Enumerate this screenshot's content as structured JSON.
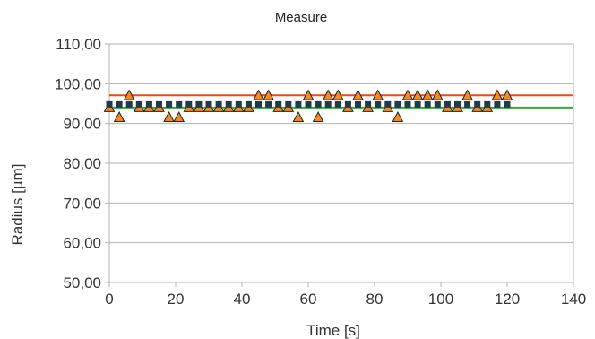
{
  "chart_data": {
    "type": "line",
    "title": "Measure",
    "xlabel": "Time [s]",
    "ylabel": "Radius [µm]",
    "xlim": [
      0,
      140
    ],
    "ylim": [
      50,
      110
    ],
    "xticks": [
      0,
      20,
      40,
      60,
      80,
      100,
      120,
      140
    ],
    "yticks": [
      50,
      60,
      70,
      80,
      90,
      100,
      110
    ],
    "x_tick_labels": [
      "0",
      "20",
      "40",
      "60",
      "80",
      "100",
      "120",
      "140"
    ],
    "y_tick_labels": [
      "50,00",
      "60,00",
      "70,00",
      "80,00",
      "90,00",
      "100,00",
      "110,00"
    ],
    "grid": "horizontal",
    "legend": "none",
    "series": [
      {
        "kind": "points",
        "marker": "triangle",
        "color": "#f08a24",
        "x": [
          0,
          3,
          6,
          9,
          12,
          15,
          18,
          21,
          24,
          27,
          30,
          33,
          36,
          39,
          42,
          45,
          48,
          51,
          54,
          57,
          60,
          63,
          66,
          69,
          72,
          75,
          78,
          81,
          84,
          87,
          90,
          93,
          96,
          99,
          102,
          105,
          108,
          111,
          114,
          117,
          120
        ],
        "values": [
          94,
          91.5,
          97,
          94,
          94,
          94,
          91.5,
          91.5,
          94,
          94,
          94,
          94,
          94,
          94,
          94,
          97,
          97,
          94,
          94,
          91.5,
          97,
          91.5,
          97,
          97,
          94,
          97,
          94,
          97,
          94,
          91.5,
          97,
          97,
          97,
          97,
          94,
          94,
          97,
          94,
          94,
          97,
          97
        ]
      },
      {
        "kind": "points",
        "marker": "square",
        "color": "#1f3a4a",
        "x": [
          0,
          3,
          6,
          9,
          12,
          15,
          18,
          21,
          24,
          27,
          30,
          33,
          36,
          39,
          42,
          45,
          48,
          51,
          54,
          57,
          60,
          63,
          66,
          69,
          72,
          75,
          78,
          81,
          84,
          87,
          90,
          93,
          96,
          99,
          102,
          105,
          108,
          111,
          114,
          117,
          120
        ],
        "values": [
          94.8,
          94.8,
          94.8,
          94.8,
          94.8,
          94.8,
          94.8,
          94.8,
          94.8,
          94.8,
          94.8,
          94.8,
          94.8,
          94.8,
          94.8,
          94.8,
          94.8,
          94.8,
          94.8,
          94.8,
          94.8,
          94.8,
          94.8,
          94.8,
          94.8,
          94.8,
          94.8,
          94.8,
          94.8,
          94.8,
          94.8,
          94.8,
          94.8,
          94.8,
          94.8,
          94.8,
          94.8,
          94.8,
          94.8,
          94.8,
          94.8
        ]
      },
      {
        "kind": "line",
        "color": "#e84a1c",
        "x": [
          0,
          140
        ],
        "values": [
          97.1,
          97.1
        ]
      },
      {
        "kind": "line",
        "color": "#3aa63a",
        "x": [
          0,
          140
        ],
        "values": [
          94,
          94
        ]
      }
    ]
  }
}
